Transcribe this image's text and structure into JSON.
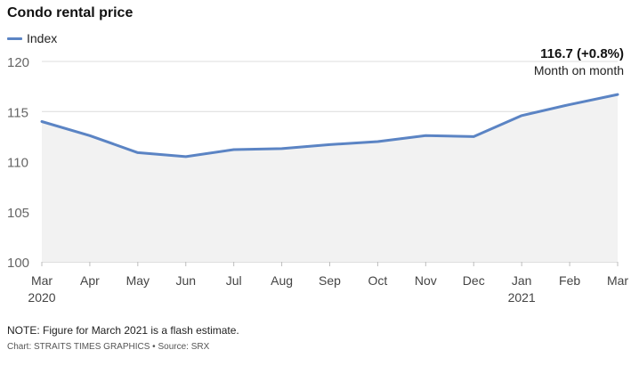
{
  "title": "Condo rental price",
  "legend": {
    "label": "Index",
    "color": "#5b84c4"
  },
  "annotation": {
    "value": "116.7 (+0.8%)",
    "subtitle": "Month on month"
  },
  "note": "NOTE: Figure for March 2021 is a flash estimate.",
  "credit": "Chart: STRAITS TIMES GRAPHICS • Source: SRX",
  "chart_data": {
    "type": "area",
    "title": "Condo rental price",
    "xlabel": "",
    "ylabel": "",
    "ylim": [
      100,
      120
    ],
    "yticks": [
      100,
      105,
      110,
      115,
      120
    ],
    "grid": true,
    "legend_position": "top-left",
    "categories": [
      "Mar",
      "Apr",
      "May",
      "Jun",
      "Jul",
      "Aug",
      "Sep",
      "Oct",
      "Nov",
      "Dec",
      "Jan",
      "Feb",
      "Mar"
    ],
    "year_labels": [
      "2020",
      "",
      "",
      "",
      "",
      "",
      "",
      "",
      "",
      "",
      "2021",
      "",
      ""
    ],
    "series": [
      {
        "name": "Index",
        "color": "#5b84c4",
        "values": [
          114.0,
          112.6,
          110.9,
          110.5,
          111.2,
          111.3,
          111.7,
          112.0,
          112.6,
          112.5,
          114.6,
          115.7,
          116.7
        ]
      }
    ]
  }
}
